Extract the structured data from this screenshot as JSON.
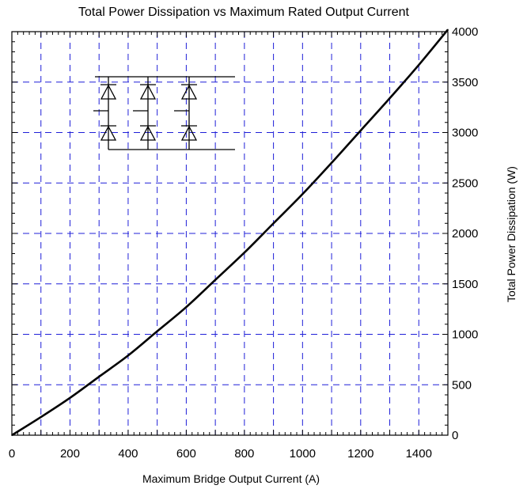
{
  "chart_data": {
    "type": "line",
    "title": "Total Power Dissipation vs Maximum Rated Output Current",
    "xlabel": "Maximum Bridge Output Current (A)",
    "ylabel": "Total Power Dissipation (W)",
    "xlim": [
      0,
      1500
    ],
    "ylim": [
      0,
      4000
    ],
    "x_ticks": [
      0,
      200,
      400,
      600,
      800,
      1000,
      1200,
      1400
    ],
    "y_ticks": [
      0,
      500,
      1000,
      1500,
      2000,
      2500,
      3000,
      3500,
      4000
    ],
    "x_tick_labels": [
      "0",
      "200",
      "400",
      "600",
      "800",
      "1000",
      "1200",
      "1400"
    ],
    "y_tick_labels": [
      "0",
      "500",
      "1000",
      "1500",
      "2000",
      "2500",
      "3000",
      "3500",
      "4000"
    ],
    "y_axis_side": "right",
    "grid": true,
    "grid_x_step": 100,
    "grid_y_step": 500,
    "inset": "three-phase diode bridge schematic",
    "series": [
      {
        "x": [
          0,
          100,
          200,
          300,
          400,
          500,
          600,
          700,
          800,
          900,
          1000,
          1100,
          1200,
          1300,
          1400,
          1500
        ],
        "y": [
          0,
          180,
          370,
          580,
          790,
          1030,
          1270,
          1540,
          1810,
          2100,
          2390,
          2700,
          3020,
          3340,
          3670,
          4020
        ]
      }
    ],
    "colors": {
      "line": "#000000",
      "grid": "#1f1fd8",
      "axes": "#000000"
    }
  }
}
